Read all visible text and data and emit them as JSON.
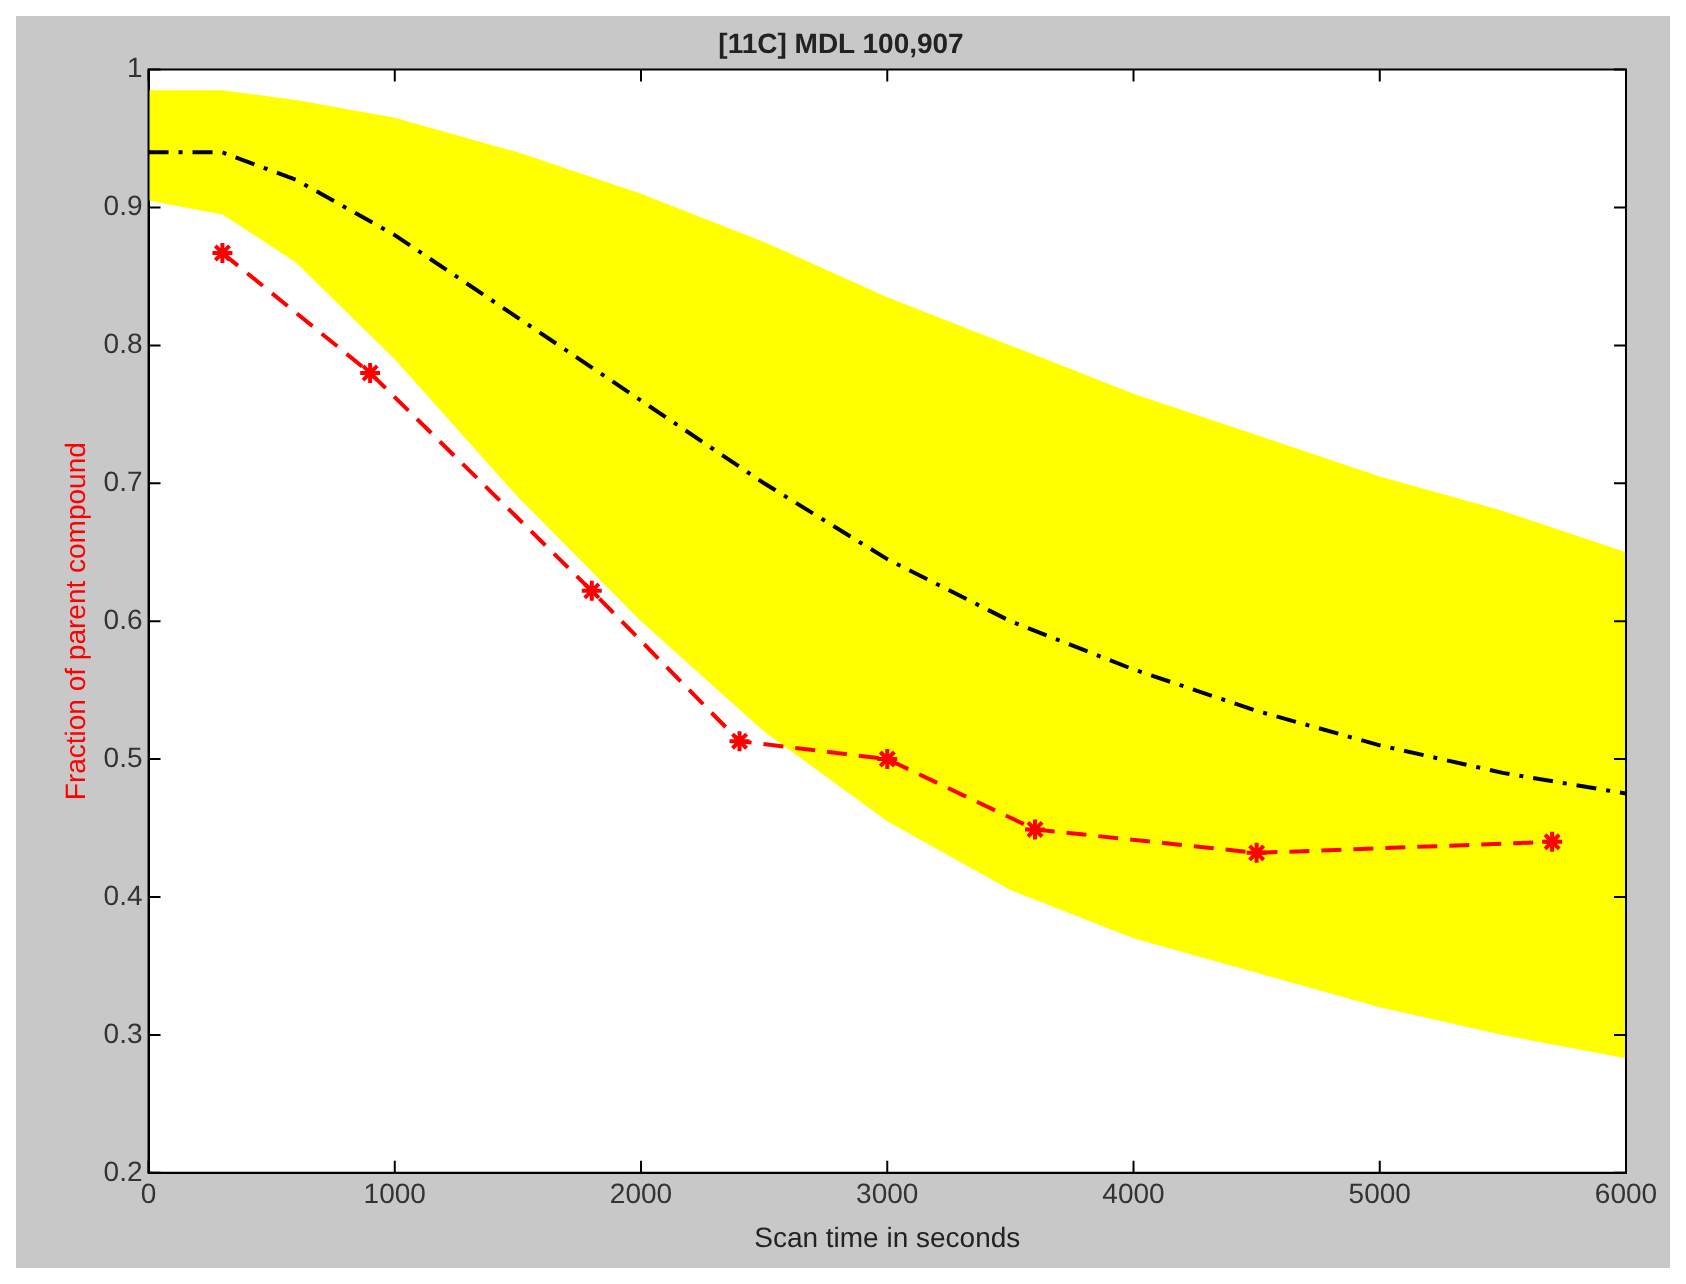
{
  "chart_data": {
    "type": "line",
    "title": "[11C] MDL 100,907",
    "xlabel": "Scan time in seconds",
    "ylabel": "Fraction of parent compound",
    "xlim": [
      0,
      6000
    ],
    "xticks": [
      0,
      1000,
      2000,
      3000,
      4000,
      5000,
      6000
    ],
    "ylim": [
      0.2,
      1
    ],
    "yticks": [
      0.2,
      0.3,
      0.4,
      0.5,
      0.6,
      0.7,
      0.8,
      0.9,
      1
    ],
    "grid": false,
    "legend": false,
    "series": [
      {
        "color": "#000000",
        "line_style": "dashdot",
        "marker": "none",
        "x": [
          0,
          300,
          600,
          1000,
          1500,
          2000,
          2500,
          3000,
          3500,
          4000,
          4500,
          5000,
          5500,
          6000
        ],
        "values": [
          0.94,
          0.94,
          0.92,
          0.88,
          0.82,
          0.76,
          0.7,
          0.645,
          0.6,
          0.565,
          0.535,
          0.51,
          0.49,
          0.475
        ],
        "lower": [
          0.905,
          0.895,
          0.86,
          0.79,
          0.69,
          0.6,
          0.52,
          0.455,
          0.405,
          0.37,
          0.345,
          0.32,
          0.3,
          0.283
        ],
        "upper": [
          0.985,
          0.985,
          0.978,
          0.965,
          0.94,
          0.91,
          0.875,
          0.835,
          0.8,
          0.765,
          0.735,
          0.705,
          0.68,
          0.65
        ]
      },
      {
        "color": "#ff0000",
        "line_style": "dashed",
        "marker": "cross",
        "x": [
          300,
          900,
          1800,
          2400,
          3000,
          3600,
          4500,
          5700
        ],
        "values": [
          0.867,
          0.78,
          0.622,
          0.513,
          0.5,
          0.449,
          0.432,
          0.44
        ]
      }
    ]
  }
}
